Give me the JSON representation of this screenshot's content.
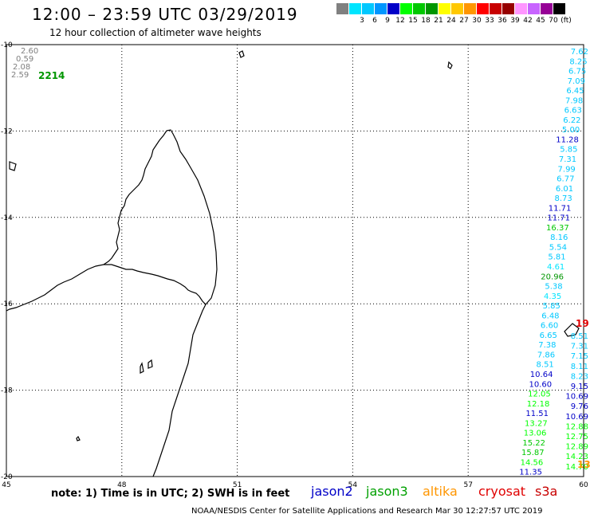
{
  "header": {
    "title": "12:00 – 23:59 UTC 03/29/2019",
    "subtitle": "12 hour collection of altimeter wave heights"
  },
  "legend": {
    "unit": "(ft)",
    "items": [
      {
        "label": "",
        "color": "#808080"
      },
      {
        "label": "3",
        "color": "#00e5ff"
      },
      {
        "label": "6",
        "color": "#00c8ff"
      },
      {
        "label": "9",
        "color": "#0096ff"
      },
      {
        "label": "12",
        "color": "#0000c8"
      },
      {
        "label": "15",
        "color": "#00ff00"
      },
      {
        "label": "18",
        "color": "#00c800"
      },
      {
        "label": "21",
        "color": "#009600"
      },
      {
        "label": "24",
        "color": "#ffff00"
      },
      {
        "label": "27",
        "color": "#ffc800"
      },
      {
        "label": "30",
        "color": "#ff9600"
      },
      {
        "label": "33",
        "color": "#ff0000"
      },
      {
        "label": "36",
        "color": "#c80000"
      },
      {
        "label": "39",
        "color": "#960000"
      },
      {
        "label": "42",
        "color": "#ff96ff"
      },
      {
        "label": "45",
        "color": "#c864ff"
      },
      {
        "label": "70",
        "color": "#960096"
      },
      {
        "label": "",
        "color": "#000000"
      }
    ]
  },
  "map": {
    "lat_labels": [
      "-10",
      "-12",
      "-14",
      "-16",
      "-18",
      "-20"
    ],
    "lon_labels": [
      "45",
      "48",
      "51",
      "54",
      "57",
      "60"
    ],
    "corner_values": [
      "2.60",
      "0.59",
      "2.08",
      "2.59"
    ],
    "corner_big": "2214",
    "right_column": [
      {
        "v": "7.62",
        "c": "#00c8ff"
      },
      {
        "v": "8.25",
        "c": "#00c8ff"
      },
      {
        "v": "6.75",
        "c": "#00c8ff"
      },
      {
        "v": "7.09",
        "c": "#00c8ff"
      },
      {
        "v": "6.45",
        "c": "#00c8ff"
      },
      {
        "v": "7.98",
        "c": "#00c8ff"
      },
      {
        "v": "6.63",
        "c": "#00c8ff"
      },
      {
        "v": "6.22",
        "c": "#00c8ff"
      },
      {
        "v": "5.00",
        "c": "#00c8ff"
      },
      {
        "v": "11.28",
        "c": "#0000c8"
      },
      {
        "v": "5.85",
        "c": "#00c8ff"
      },
      {
        "v": "7.31",
        "c": "#00c8ff"
      },
      {
        "v": "7.99",
        "c": "#00c8ff"
      },
      {
        "v": "6.77",
        "c": "#00c8ff"
      },
      {
        "v": "6.01",
        "c": "#00c8ff"
      },
      {
        "v": "8.73",
        "c": "#00c8ff"
      },
      {
        "v": "11.71",
        "c": "#0000c8"
      },
      {
        "v": "11.71",
        "c": "#0000c8"
      },
      {
        "v": "16.37",
        "c": "#00c800"
      },
      {
        "v": "8.16",
        "c": "#00c8ff"
      },
      {
        "v": "5.54",
        "c": "#00c8ff"
      },
      {
        "v": "5.81",
        "c": "#00c8ff"
      },
      {
        "v": "4.61",
        "c": "#00e5ff"
      },
      {
        "v": "20.96",
        "c": "#009600"
      },
      {
        "v": "5.38",
        "c": "#00c8ff"
      },
      {
        "v": "4.35",
        "c": "#00e5ff"
      },
      {
        "v": "5.85",
        "c": "#00c8ff"
      },
      {
        "v": "6.48",
        "c": "#00c8ff"
      },
      {
        "v": "6.60",
        "c": "#00c8ff"
      },
      {
        "v": "6.65",
        "c": "#00c8ff"
      },
      {
        "v": "7.38",
        "c": "#00c8ff"
      },
      {
        "v": "7.86",
        "c": "#00c8ff"
      },
      {
        "v": "8.51",
        "c": "#00c8ff"
      },
      {
        "v": "10.64",
        "c": "#0000c8"
      },
      {
        "v": "10.60",
        "c": "#0000c8"
      },
      {
        "v": "12.05",
        "c": "#00ff00"
      },
      {
        "v": "12.18",
        "c": "#00ff00"
      },
      {
        "v": "11.51",
        "c": "#0000c8"
      },
      {
        "v": "13.27",
        "c": "#00ff00"
      },
      {
        "v": "13.06",
        "c": "#00ff00"
      },
      {
        "v": "15.22",
        "c": "#00c800"
      },
      {
        "v": "15.87",
        "c": "#00c800"
      },
      {
        "v": "14.56",
        "c": "#00ff00"
      },
      {
        "v": "11.35",
        "c": "#0000c8"
      }
    ],
    "right_column2": [
      {
        "v": "8.51",
        "c": "#00c8ff"
      },
      {
        "v": "7.31",
        "c": "#00c8ff"
      },
      {
        "v": "7.15",
        "c": "#00c8ff"
      },
      {
        "v": "8.11",
        "c": "#00c8ff"
      },
      {
        "v": "8.23",
        "c": "#00c8ff"
      },
      {
        "v": "9.15",
        "c": "#0000c8"
      },
      {
        "v": "10.69",
        "c": "#0000c8"
      },
      {
        "v": "9.76",
        "c": "#0000c8"
      },
      {
        "v": "10.69",
        "c": "#0000c8"
      },
      {
        "v": "12.88",
        "c": "#00ff00"
      },
      {
        "v": "12.75",
        "c": "#00ff00"
      },
      {
        "v": "12.89",
        "c": "#00ff00"
      },
      {
        "v": "14.23",
        "c": "#00ff00"
      },
      {
        "v": "14.70",
        "c": "#00ff00"
      }
    ],
    "red_value": "19",
    "orange_value": "13"
  },
  "footer": {
    "note": "note: 1) Time is in UTC; 2) SWH is in feet",
    "satellites": [
      {
        "name": "jason2",
        "color": "#0000c8"
      },
      {
        "name": "jason3",
        "color": "#00a000"
      },
      {
        "name": "altika",
        "color": "#ff9600"
      },
      {
        "name": "cryosat",
        "color": "#e00000"
      },
      {
        "name": "s3a",
        "color": "#c80000"
      }
    ],
    "credit": "NOAA/NESDIS Center for Satellite Applications and Research    Mar 30 12:27:57 UTC 2019"
  }
}
